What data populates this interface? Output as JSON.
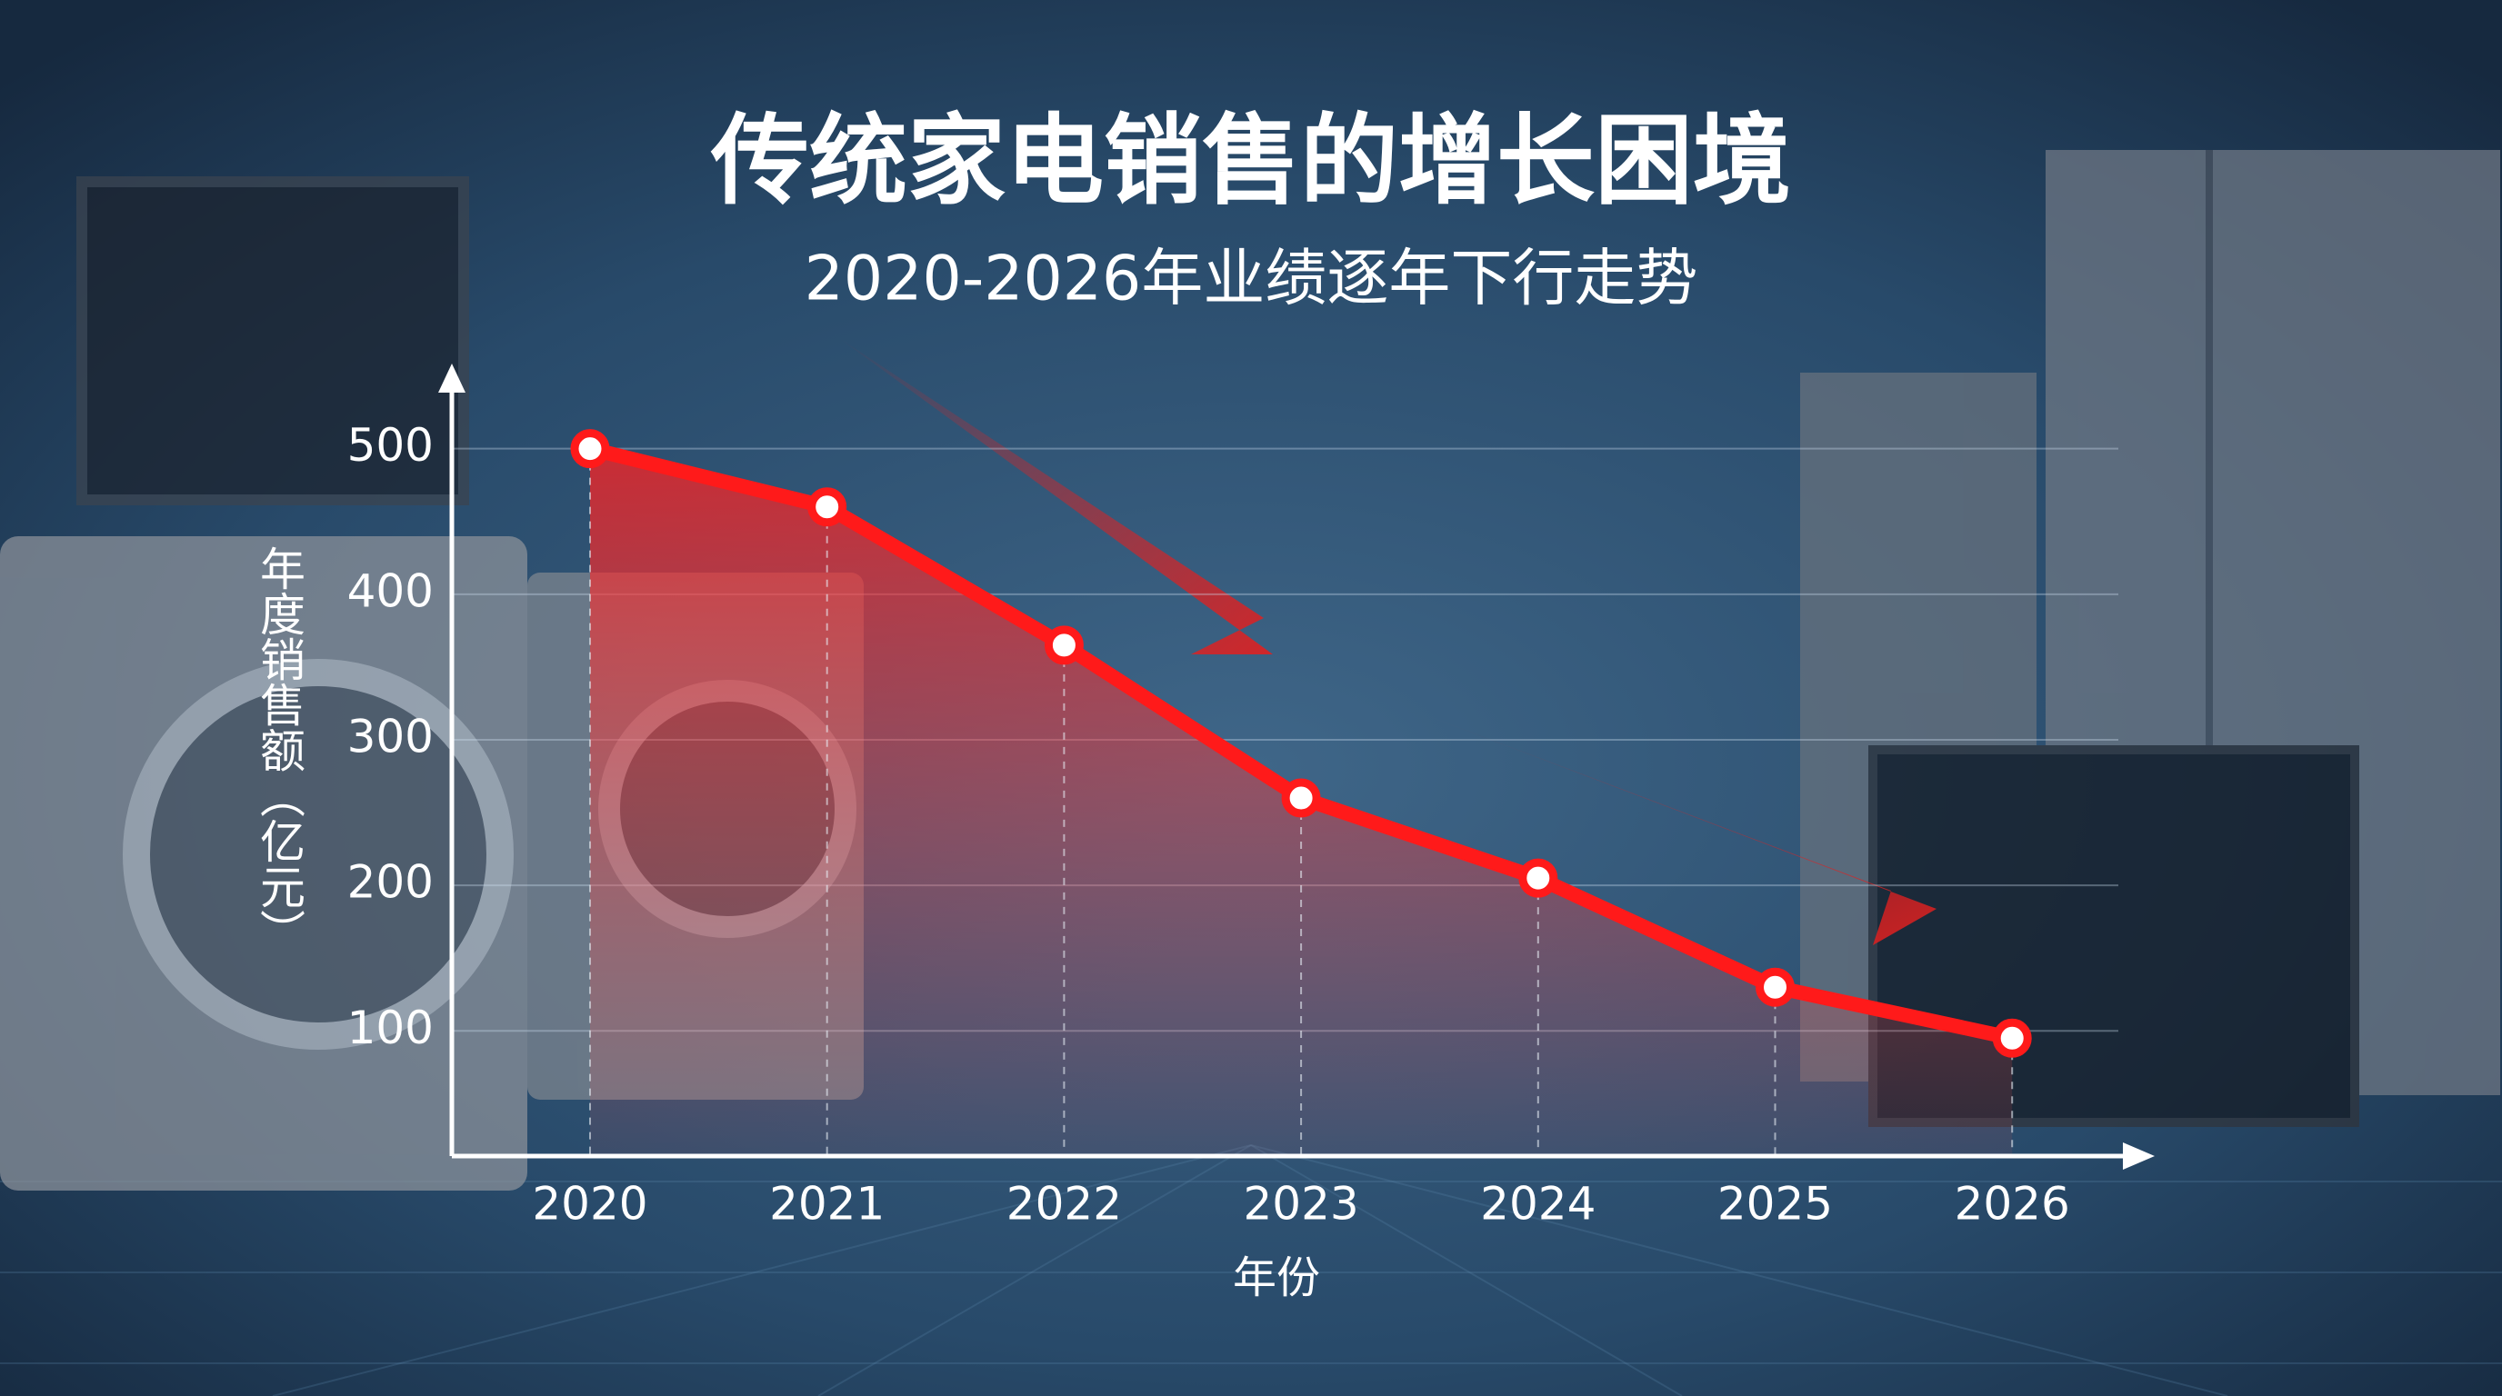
{
  "chart_data": {
    "type": "line",
    "title": "传统家电销售的增长困境",
    "subtitle": "2020-2026年业绩逐年下行走势",
    "x_label": "年份",
    "y_label": "年度销售额（亿元）",
    "categories": [
      "2020",
      "2021",
      "2022",
      "2023",
      "2024",
      "2025",
      "2026"
    ],
    "values": [
      500,
      460,
      365,
      260,
      205,
      130,
      95
    ],
    "color": "#ff1a1a",
    "ylim": [
      14,
      556
    ],
    "yticks": [
      100,
      200,
      300,
      400,
      500
    ],
    "grid": true
  }
}
